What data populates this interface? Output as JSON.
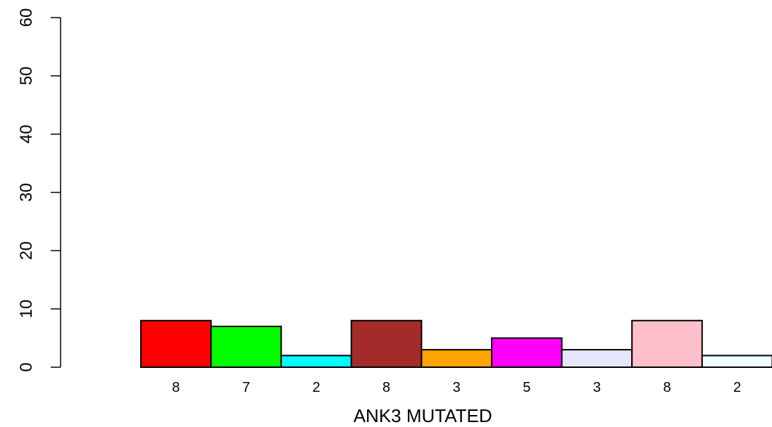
{
  "chart_data": {
    "type": "bar",
    "title": "",
    "xlabel": "ANK3 MUTATED",
    "ylabel": "",
    "ylim": [
      0,
      60
    ],
    "yticks": [
      0,
      10,
      20,
      30,
      40,
      50,
      60
    ],
    "grid": false,
    "values": [
      8,
      7,
      2,
      8,
      3,
      5,
      3,
      8,
      2
    ],
    "bar_labels": [
      "8",
      "7",
      "2",
      "8",
      "3",
      "5",
      "3",
      "8",
      "2"
    ],
    "colors": [
      "#ff0000",
      "#00ff00",
      "#00ffff",
      "#a52a2a",
      "#ffa500",
      "#ff00ff",
      "#e6e6fa",
      "#ffc0cb",
      "#f0ffff"
    ]
  }
}
